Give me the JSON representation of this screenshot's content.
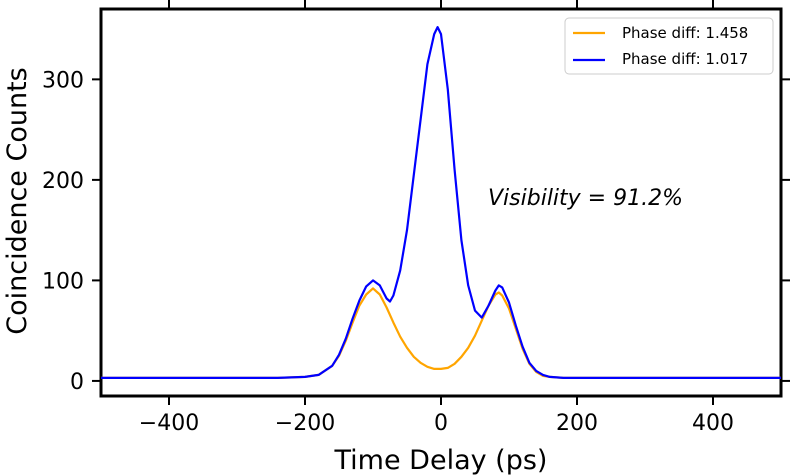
{
  "chart_data": {
    "type": "line",
    "xlabel": "Time Delay (ps)",
    "ylabel": "Coincidence Counts",
    "xlim": [
      -500,
      500
    ],
    "ylim": [
      -15,
      370
    ],
    "xticks": [
      -400,
      -200,
      0,
      200,
      400
    ],
    "xtick_labels": [
      "−400",
      "−200",
      "0",
      "200",
      "400"
    ],
    "yticks": [
      0,
      100,
      200,
      300
    ],
    "ytick_labels": [
      "0",
      "100",
      "200",
      "300"
    ],
    "grid": false,
    "legend_position": "top-right",
    "annotation": "Visibility = 91.2%",
    "series": [
      {
        "name": "Phase diff: 1.458",
        "color": "#FFA500",
        "x": [
          -500,
          -400,
          -300,
          -240,
          -200,
          -180,
          -160,
          -150,
          -140,
          -130,
          -120,
          -110,
          -100,
          -90,
          -80,
          -70,
          -60,
          -50,
          -40,
          -30,
          -20,
          -10,
          0,
          10,
          20,
          30,
          40,
          50,
          60,
          70,
          80,
          85,
          90,
          100,
          110,
          120,
          130,
          140,
          150,
          160,
          180,
          200,
          300,
          400,
          500
        ],
        "y": [
          3,
          3,
          3,
          3,
          4,
          6,
          15,
          25,
          40,
          58,
          75,
          86,
          92,
          86,
          73,
          58,
          44,
          33,
          24,
          18,
          14,
          12,
          12,
          13,
          17,
          24,
          33,
          45,
          60,
          75,
          86,
          88,
          85,
          72,
          52,
          32,
          17,
          9,
          5,
          4,
          3,
          3,
          3,
          3,
          3
        ]
      },
      {
        "name": "Phase diff: 1.017",
        "color": "#0000FF",
        "x": [
          -500,
          -400,
          -300,
          -240,
          -200,
          -180,
          -160,
          -150,
          -140,
          -130,
          -120,
          -110,
          -100,
          -90,
          -80,
          -75,
          -70,
          -60,
          -50,
          -40,
          -30,
          -20,
          -10,
          -5,
          0,
          10,
          20,
          30,
          40,
          50,
          60,
          70,
          80,
          85,
          90,
          100,
          110,
          120,
          130,
          140,
          150,
          160,
          180,
          200,
          300,
          400,
          500
        ],
        "y": [
          3,
          3,
          3,
          3,
          4,
          6,
          15,
          26,
          42,
          62,
          80,
          94,
          100,
          95,
          82,
          79,
          85,
          110,
          150,
          205,
          260,
          315,
          345,
          352,
          345,
          290,
          210,
          140,
          95,
          70,
          63,
          75,
          90,
          95,
          93,
          78,
          55,
          34,
          18,
          10,
          6,
          4,
          3,
          3,
          3,
          3,
          3
        ]
      }
    ]
  }
}
